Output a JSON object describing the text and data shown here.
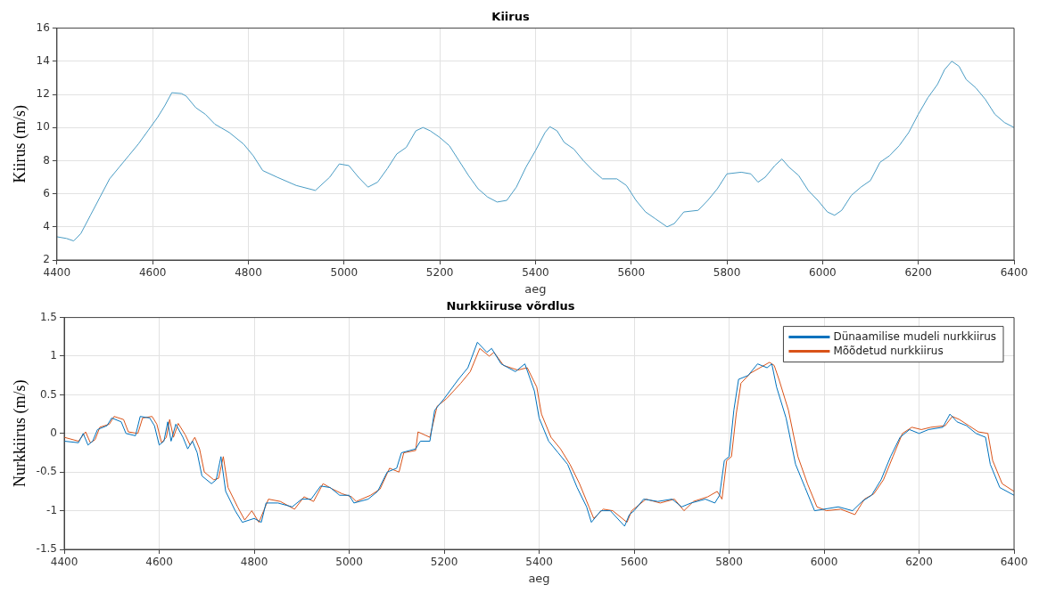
{
  "chart_data": [
    {
      "type": "line",
      "title": "Kiirus",
      "xlabel": "aeg",
      "ylabel": "Kiirus (m/s)",
      "xlim": [
        4400,
        6400
      ],
      "xticks": [
        4400,
        4600,
        4800,
        5000,
        5200,
        5400,
        5600,
        5800,
        6000,
        6200,
        6400
      ],
      "ylim": [
        2,
        16
      ],
      "yticks": [
        2,
        4,
        6,
        8,
        10,
        12,
        14,
        16
      ],
      "grid": true,
      "legend": false,
      "marker": "none",
      "line_style": "solid",
      "series": [
        {
          "color": "#4a9cc4",
          "x": [
            4400,
            4420,
            4435,
            4450,
            4470,
            4490,
            4510,
            4530,
            4550,
            4570,
            4590,
            4610,
            4625,
            4640,
            4660,
            4670,
            4690,
            4710,
            4730,
            4760,
            4790,
            4810,
            4830,
            4860,
            4900,
            4940,
            4970,
            4990,
            5010,
            5030,
            5050,
            5070,
            5090,
            5110,
            5130,
            5150,
            5165,
            5180,
            5200,
            5220,
            5240,
            5260,
            5280,
            5300,
            5320,
            5340,
            5360,
            5380,
            5400,
            5420,
            5430,
            5445,
            5460,
            5480,
            5500,
            5520,
            5540,
            5570,
            5590,
            5610,
            5630,
            5650,
            5675,
            5690,
            5710,
            5740,
            5760,
            5780,
            5800,
            5830,
            5850,
            5865,
            5880,
            5900,
            5915,
            5930,
            5950,
            5970,
            5990,
            6010,
            6025,
            6040,
            6060,
            6080,
            6100,
            6120,
            6140,
            6160,
            6180,
            6200,
            6220,
            6240,
            6255,
            6270,
            6285,
            6300,
            6320,
            6340,
            6360,
            6380,
            6400
          ],
          "values": [
            3.4,
            3.3,
            3.15,
            3.6,
            4.7,
            5.8,
            6.9,
            7.6,
            8.3,
            9.0,
            9.8,
            10.6,
            11.3,
            12.1,
            12.05,
            11.9,
            11.2,
            10.8,
            10.2,
            9.7,
            9.0,
            8.3,
            7.4,
            7.0,
            6.5,
            6.2,
            7.0,
            7.8,
            7.7,
            7.0,
            6.4,
            6.7,
            7.5,
            8.4,
            8.8,
            9.8,
            10.0,
            9.8,
            9.4,
            8.9,
            8.0,
            7.1,
            6.3,
            5.8,
            5.5,
            5.6,
            6.4,
            7.6,
            8.6,
            9.7,
            10.05,
            9.8,
            9.1,
            8.7,
            8.0,
            7.4,
            6.9,
            6.9,
            6.5,
            5.6,
            4.9,
            4.5,
            4.0,
            4.2,
            4.9,
            5.0,
            5.6,
            6.3,
            7.2,
            7.3,
            7.2,
            6.7,
            7.0,
            7.7,
            8.1,
            7.6,
            7.1,
            6.2,
            5.6,
            4.9,
            4.7,
            5.0,
            5.9,
            6.4,
            6.8,
            7.9,
            8.3,
            8.9,
            9.7,
            10.8,
            11.8,
            12.6,
            13.5,
            14.0,
            13.7,
            12.9,
            12.4,
            11.7,
            10.8,
            10.3,
            10.0
          ]
        }
      ]
    },
    {
      "type": "line",
      "title": "Nurkkiiruse võrdlus",
      "xlabel": "aeg",
      "ylabel": "Nurkkiirus (m/s)",
      "xlim": [
        4400,
        6400
      ],
      "xticks": [
        4400,
        4600,
        4800,
        5000,
        5200,
        5400,
        5600,
        5800,
        6000,
        6200,
        6400
      ],
      "ylim": [
        -1.5,
        1.5
      ],
      "yticks": [
        -1.5,
        -1,
        -0.5,
        0,
        0.5,
        1,
        1.5
      ],
      "grid": true,
      "legend": "top right",
      "marker": "none",
      "line_style": "solid",
      "series": [
        {
          "name": "Dünaamilise mudeli nurkkiirus",
          "color": "#0072bd",
          "x": [
            4400,
            4430,
            4440,
            4450,
            4460,
            4470,
            4490,
            4500,
            4520,
            4530,
            4550,
            4560,
            4580,
            4590,
            4600,
            4610,
            4618,
            4625,
            4635,
            4650,
            4660,
            4670,
            4680,
            4690,
            4710,
            4720,
            4730,
            4740,
            4760,
            4775,
            4800,
            4815,
            4825,
            4850,
            4880,
            4900,
            4920,
            4940,
            4960,
            4980,
            5000,
            5010,
            5040,
            5060,
            5080,
            5100,
            5110,
            5140,
            5150,
            5170,
            5180,
            5200,
            5230,
            5250,
            5270,
            5290,
            5300,
            5320,
            5350,
            5370,
            5390,
            5400,
            5420,
            5440,
            5460,
            5480,
            5500,
            5510,
            5530,
            5550,
            5580,
            5590,
            5600,
            5620,
            5650,
            5680,
            5700,
            5720,
            5750,
            5770,
            5780,
            5790,
            5800,
            5810,
            5820,
            5840,
            5860,
            5880,
            5890,
            5900,
            5920,
            5940,
            5960,
            5980,
            6000,
            6030,
            6060,
            6080,
            6100,
            6120,
            6140,
            6160,
            6180,
            6200,
            6220,
            6250,
            6265,
            6280,
            6300,
            6320,
            6340,
            6350,
            6370,
            6400
          ],
          "values": [
            -0.1,
            -0.12,
            0.0,
            -0.15,
            -0.1,
            0.05,
            0.1,
            0.2,
            0.15,
            0.0,
            -0.03,
            0.22,
            0.2,
            0.1,
            -0.15,
            -0.1,
            0.15,
            -0.1,
            0.12,
            -0.05,
            -0.2,
            -0.1,
            -0.25,
            -0.55,
            -0.65,
            -0.6,
            -0.3,
            -0.75,
            -1.0,
            -1.15,
            -1.1,
            -1.15,
            -0.9,
            -0.9,
            -0.95,
            -0.85,
            -0.85,
            -0.68,
            -0.7,
            -0.8,
            -0.8,
            -0.9,
            -0.85,
            -0.75,
            -0.5,
            -0.45,
            -0.25,
            -0.2,
            -0.1,
            -0.1,
            0.3,
            0.45,
            0.7,
            0.85,
            1.18,
            1.05,
            1.1,
            0.9,
            0.8,
            0.9,
            0.55,
            0.2,
            -0.1,
            -0.25,
            -0.4,
            -0.7,
            -0.95,
            -1.15,
            -1.0,
            -1.0,
            -1.2,
            -1.05,
            -1.0,
            -0.85,
            -0.88,
            -0.85,
            -0.95,
            -0.9,
            -0.85,
            -0.9,
            -0.8,
            -0.35,
            -0.3,
            0.3,
            0.7,
            0.75,
            0.9,
            0.85,
            0.9,
            0.6,
            0.2,
            -0.4,
            -0.7,
            -1.0,
            -0.98,
            -0.95,
            -1.0,
            -0.88,
            -0.8,
            -0.6,
            -0.3,
            -0.05,
            0.05,
            0.0,
            0.05,
            0.08,
            0.25,
            0.15,
            0.1,
            0.0,
            -0.05,
            -0.4,
            -0.7,
            -0.8
          ]
        },
        {
          "name": "Mõõdetud nurkkiirus",
          "color": "#d95319",
          "x": [
            4400,
            4430,
            4445,
            4455,
            4465,
            4475,
            4495,
            4505,
            4525,
            4535,
            4555,
            4565,
            4585,
            4595,
            4605,
            4615,
            4622,
            4630,
            4640,
            4655,
            4665,
            4675,
            4685,
            4695,
            4715,
            4725,
            4735,
            4745,
            4765,
            4780,
            4795,
            4810,
            4820,
            4830,
            4855,
            4885,
            4905,
            4925,
            4945,
            4965,
            4985,
            5005,
            5015,
            5045,
            5065,
            5085,
            5105,
            5115,
            5140,
            5145,
            5170,
            5185,
            5205,
            5235,
            5255,
            5275,
            5295,
            5305,
            5325,
            5355,
            5375,
            5395,
            5405,
            5425,
            5445,
            5465,
            5485,
            5505,
            5515,
            5535,
            5555,
            5585,
            5595,
            5605,
            5625,
            5655,
            5685,
            5705,
            5725,
            5755,
            5775,
            5785,
            5795,
            5805,
            5815,
            5825,
            5845,
            5865,
            5885,
            5895,
            5905,
            5925,
            5945,
            5965,
            5985,
            6005,
            6035,
            6065,
            6085,
            6105,
            6125,
            6145,
            6165,
            6185,
            6205,
            6225,
            6255,
            6270,
            6285,
            6305,
            6325,
            6345,
            6355,
            6375,
            6400
          ],
          "values": [
            -0.05,
            -0.1,
            0.02,
            -0.12,
            -0.08,
            0.08,
            0.12,
            0.22,
            0.18,
            0.02,
            0.0,
            0.2,
            0.22,
            0.12,
            -0.12,
            -0.05,
            0.18,
            -0.05,
            0.13,
            -0.02,
            -0.15,
            -0.05,
            -0.2,
            -0.5,
            -0.6,
            -0.58,
            -0.3,
            -0.7,
            -0.95,
            -1.12,
            -1.0,
            -1.15,
            -1.0,
            -0.85,
            -0.88,
            -0.98,
            -0.82,
            -0.88,
            -0.65,
            -0.72,
            -0.78,
            -0.82,
            -0.88,
            -0.8,
            -0.72,
            -0.45,
            -0.5,
            -0.25,
            -0.22,
            0.02,
            -0.05,
            0.35,
            0.45,
            0.65,
            0.8,
            1.1,
            1.0,
            1.05,
            0.88,
            0.82,
            0.85,
            0.6,
            0.25,
            -0.05,
            -0.2,
            -0.4,
            -0.65,
            -0.95,
            -1.1,
            -0.98,
            -1.0,
            -1.15,
            -1.0,
            -0.95,
            -0.85,
            -0.9,
            -0.85,
            -1.0,
            -0.88,
            -0.82,
            -0.75,
            -0.85,
            -0.35,
            -0.3,
            0.25,
            0.65,
            0.78,
            0.85,
            0.92,
            0.88,
            0.7,
            0.3,
            -0.3,
            -0.65,
            -0.95,
            -1.0,
            -0.98,
            -1.05,
            -0.85,
            -0.78,
            -0.6,
            -0.3,
            0.0,
            0.08,
            0.05,
            0.08,
            0.1,
            0.22,
            0.18,
            0.1,
            0.02,
            0.0,
            -0.35,
            -0.65,
            -0.75
          ]
        }
      ]
    }
  ]
}
